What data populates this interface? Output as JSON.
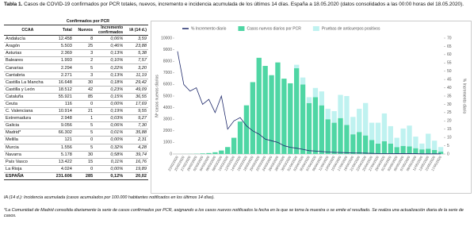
{
  "caption": {
    "label": "Tabla 1.",
    "text": "Casos de COVID-19 confirmados por PCR totales, nuevos, incremento e incidencia acumulada de los últimos 14 días. España a 18.05.2020 (datos consolidados a las 00:00 horas del 18.05.2020)."
  },
  "table": {
    "group_header": "Confirmados por PCR",
    "columns": [
      "CCAA",
      "Total",
      "Nuevos",
      "Incremento confirmados",
      "IA (14 d.)"
    ],
    "rows": [
      [
        "Andalucía",
        "12.458",
        "8",
        "0,06%",
        "3,59"
      ],
      [
        "Aragón",
        "5.503",
        "25",
        "0,46%",
        "23,88"
      ],
      [
        "Asturias",
        "2.369",
        "3",
        "0,13%",
        "5,38"
      ],
      [
        "Baleares",
        "1.993",
        "2",
        "0,10%",
        "7,57"
      ],
      [
        "Canarias",
        "2.294",
        "5",
        "0,22%",
        "3,20"
      ],
      [
        "Cantabria",
        "2.271",
        "3",
        "0,13%",
        "11,19"
      ],
      [
        "Castilla La Mancha",
        "16.648",
        "30",
        "0,18%",
        "29,42"
      ],
      [
        "Castilla y León",
        "18.512",
        "42",
        "0,23%",
        "49,09"
      ],
      [
        "Cataluña",
        "55.921",
        "85",
        "0,15%",
        "36,55"
      ],
      [
        "Ceuta",
        "116",
        "0",
        "0,00%",
        "17,69"
      ],
      [
        "C. Valenciana",
        "10.914",
        "21",
        "0,19%",
        "9,55"
      ],
      [
        "Extremadura",
        "2.948",
        "1",
        "0,03%",
        "9,27"
      ],
      [
        "Galicia",
        "9.056",
        "5",
        "0,06%",
        "7,30"
      ],
      [
        "Madrid*",
        "66.302",
        "5",
        "0,01%",
        "35,88"
      ],
      [
        "Melilla",
        "121",
        "0",
        "0,00%",
        "2,31"
      ],
      [
        "Murcia",
        "1.556",
        "5",
        "0,32%",
        "4,28"
      ],
      [
        "Navarra",
        "5.178",
        "30",
        "0,58%",
        "39,74"
      ],
      [
        "País Vasco",
        "13.422",
        "15",
        "0,11%",
        "16,76"
      ],
      [
        "La Rioja",
        "4.024",
        "0",
        "0,00%",
        "19,89"
      ]
    ],
    "total": [
      "ESPAÑA",
      "231.606",
      "285",
      "0,12%",
      "20,02"
    ]
  },
  "chart_data": {
    "type": "bar",
    "stacked": true,
    "ylabel": "Nº casos nuevos diarios",
    "y2label": "% Incremento diario",
    "categories": [
      "23/02/2020",
      "25/02/2020",
      "27/02/2020",
      "29/02/2020",
      "02/03/2020",
      "04/03/2020",
      "06/03/2020",
      "08/03/2020",
      "10/03/2020",
      "12/03/2020",
      "14/03/2020",
      "16/03/2020",
      "18/03/2020",
      "20/03/2020",
      "22/03/2020",
      "24/03/2020",
      "26/03/2020",
      "28/03/2020",
      "30/03/2020",
      "01/04/2020",
      "03/04/2020",
      "05/04/2020",
      "07/04/2020",
      "09/04/2020",
      "11/04/2020",
      "13/04/2020",
      "15/04/2020",
      "17/04/2020",
      "19/04/2020",
      "21/04/2020",
      "23/04/2020",
      "25/04/2020",
      "27/04/2020",
      "29/04/2020",
      "01/05/2020",
      "03/05/2020",
      "05/05/2020",
      "07/05/2020",
      "09/05/2020",
      "11/05/2020",
      "13/05/2020",
      "15/05/2020",
      "17/05/2020"
    ],
    "series": [
      {
        "name": "% Incremento diario",
        "type": "line",
        "axis": "y2",
        "color": "#1f2a6b",
        "values": [
          62,
          42,
          38,
          40,
          30,
          33,
          25,
          35,
          15,
          20,
          22,
          17,
          14,
          12,
          9,
          8,
          7,
          5,
          4,
          3.5,
          2.8,
          2,
          1.8,
          1.5,
          1.2,
          1,
          0.9,
          0.8,
          0.6,
          0.6,
          0.5,
          0.4,
          0.3,
          0.3,
          0.3,
          0.2,
          0.2,
          0.2,
          0.2,
          0.1,
          0.1,
          0.1,
          0.1
        ]
      },
      {
        "name": "Casos nuevos diarios por PCR",
        "type": "bar",
        "color": "#4fd6a4",
        "values": [
          2,
          5,
          10,
          20,
          50,
          80,
          150,
          300,
          600,
          1400,
          2800,
          4200,
          6200,
          8300,
          7600,
          6800,
          7900,
          6500,
          6100,
          7400,
          6000,
          4400,
          4900,
          4200,
          3000,
          2700,
          3100,
          2500,
          1700,
          1900,
          1600,
          1200,
          900,
          1100,
          900,
          600,
          700,
          650,
          500,
          400,
          450,
          350,
          200
        ]
      },
      {
        "name": "Pruebas de anticuerpos positivos",
        "type": "bar",
        "color": "#bff2f0",
        "values": [
          null,
          null,
          null,
          null,
          null,
          null,
          null,
          null,
          null,
          null,
          null,
          null,
          null,
          null,
          null,
          null,
          null,
          null,
          null,
          300,
          600,
          500,
          800,
          1200,
          900,
          1000,
          2000,
          2500,
          1500,
          2000,
          2800,
          1500,
          1800,
          2400,
          1500,
          800,
          1500,
          1800,
          1000,
          500,
          1300,
          800,
          400
        ]
      }
    ],
    "ylim": [
      0,
      10000
    ],
    "yticks": [
      0,
      1000,
      2000,
      3000,
      4000,
      5000,
      6000,
      7000,
      8000,
      9000,
      10000
    ],
    "y2lim": [
      0,
      70
    ],
    "y2ticks": [
      0,
      5,
      10,
      15,
      20,
      25,
      30,
      35,
      40,
      45,
      50,
      55,
      60,
      65,
      70
    ]
  },
  "footnotes": [
    "IA (14 d.): Incidencia acumulada (casos acumulados por 100.000 habitantes notificados en los últimos 14 días).",
    "*La Comunidad de Madrid consolida diariamente la serie de casos confirmados por PCR, asignando a los casos nuevos notificados la fecha en la que se toma la muestra o se emite el resultado. Se realiza una actualización diaria de la serie de casos."
  ]
}
